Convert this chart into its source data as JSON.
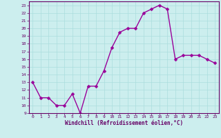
{
  "x": [
    0,
    1,
    2,
    3,
    4,
    5,
    6,
    7,
    8,
    9,
    10,
    11,
    12,
    13,
    14,
    15,
    16,
    17,
    18,
    19,
    20,
    21,
    22,
    23
  ],
  "y": [
    13.0,
    11.0,
    11.0,
    10.0,
    10.0,
    11.5,
    9.0,
    12.5,
    12.5,
    14.5,
    17.5,
    19.5,
    20.0,
    20.0,
    22.0,
    22.5,
    23.0,
    22.5,
    16.0,
    16.5,
    16.5,
    16.5,
    16.0,
    15.5
  ],
  "line_color": "#990099",
  "marker_color": "#990099",
  "bg_color": "#cceeee",
  "grid_color": "#aadddd",
  "xlabel": "Windchill (Refroidissement éolien,°C)",
  "xlim": [
    -0.5,
    23.5
  ],
  "ylim": [
    9,
    23.5
  ],
  "yticks": [
    9,
    10,
    11,
    12,
    13,
    14,
    15,
    16,
    17,
    18,
    19,
    20,
    21,
    22,
    23
  ],
  "xticks": [
    0,
    1,
    2,
    3,
    4,
    5,
    6,
    7,
    8,
    9,
    10,
    11,
    12,
    13,
    14,
    15,
    16,
    17,
    18,
    19,
    20,
    21,
    22,
    23
  ],
  "axis_label_color": "#660066",
  "tick_color": "#660066",
  "border_color": "#660066",
  "line_width": 1.0,
  "marker_size": 2.5
}
